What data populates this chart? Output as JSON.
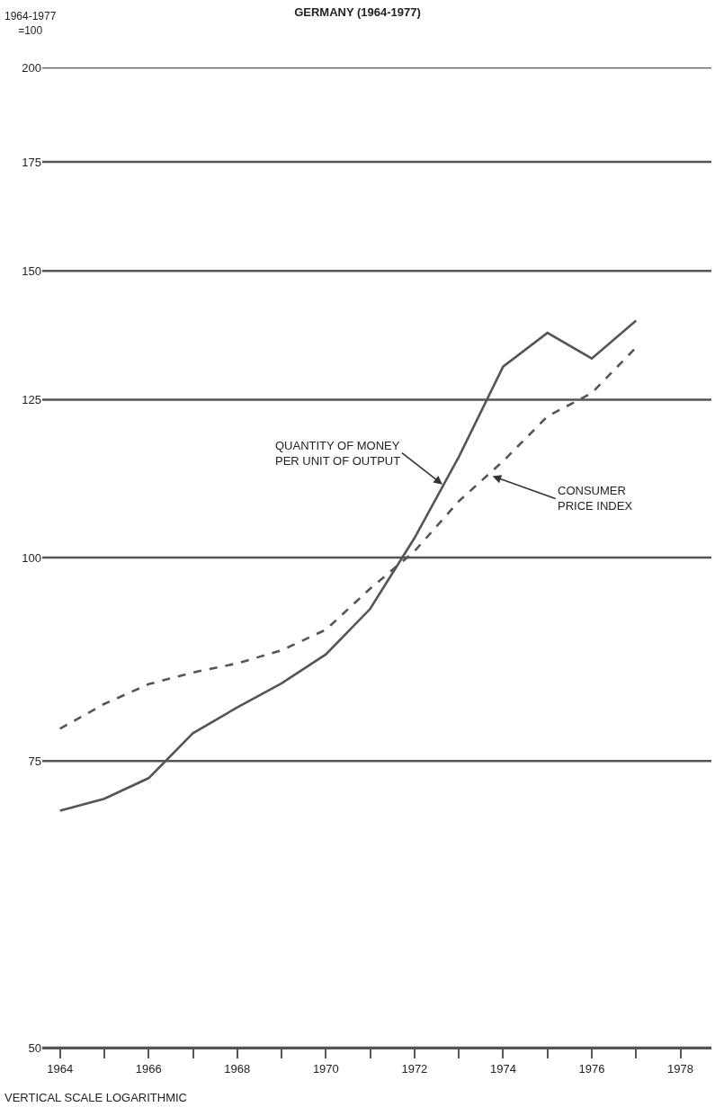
{
  "chart_data": {
    "type": "line",
    "title": "GERMANY (1964-1977)",
    "ylabel": "1964-1977\n=100",
    "x": [
      1964,
      1965,
      1966,
      1967,
      1968,
      1969,
      1970,
      1971,
      1972,
      1973,
      1974,
      1975,
      1976,
      1977
    ],
    "series": [
      {
        "color": "#555555",
        "line_style": "solid",
        "values": [
          69.9,
          71.1,
          73.2,
          78,
          80.9,
          83.7,
          87.2,
          93,
          102.8,
          115.3,
          131,
          137.4,
          132.5,
          139.8
        ]
      },
      {
        "color": "#555555",
        "line_style": "dashed",
        "values": [
          78.5,
          81.3,
          83.6,
          85,
          86.1,
          87.7,
          90.3,
          95.7,
          100.9,
          108.3,
          114.6,
          122.1,
          126.2,
          134.6
        ]
      }
    ],
    "log": "y",
    "ylim": [
      50,
      200
    ],
    "yticks": [
      50,
      75,
      100,
      125,
      150,
      175,
      200
    ],
    "xlim": [
      1963.6,
      1978.7
    ],
    "xticks": [
      1964,
      {
        "value": 1965,
        "label": null
      },
      1966,
      {
        "value": 1967,
        "label": null
      },
      1968,
      {
        "value": 1969,
        "label": null
      },
      1970,
      {
        "value": 1971,
        "label": null
      },
      1972,
      {
        "value": 1973,
        "label": null
      },
      1974,
      {
        "value": 1975,
        "label": null
      },
      1976,
      {
        "value": 1977,
        "label": null
      },
      1978
    ],
    "grid": "y",
    "legend": false,
    "marker": "none",
    "annotations": [
      {
        "text": "QUANTITY OF MONEY\nPER UNIT OF OUTPUT",
        "x": 1972.63,
        "y": 110.9
      },
      {
        "text": "CONSUMER\nPRICE INDEX",
        "x": 1973.76,
        "y": 112.2
      },
      "VERTICAL SCALE LOGARITHMIC"
    ]
  }
}
